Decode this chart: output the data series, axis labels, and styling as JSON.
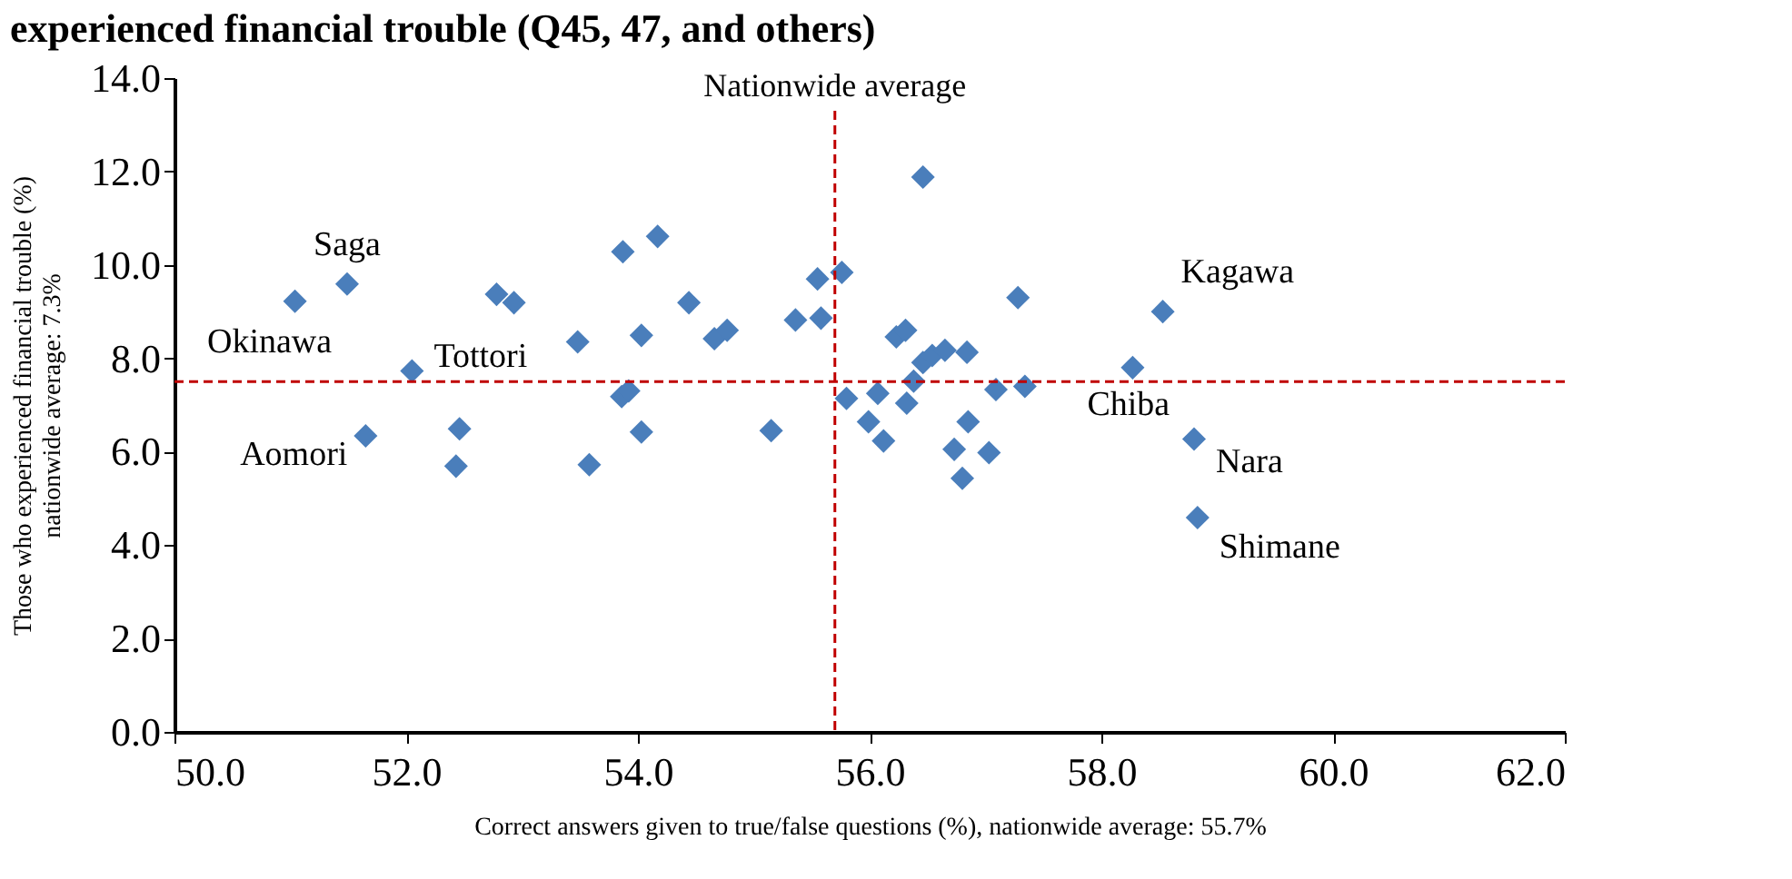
{
  "chart_data": {
    "type": "scatter",
    "title": "experienced financial trouble (Q45, 47, and others)",
    "xlabel": "Correct answers given to true/false questions (%), nationwide average: 55.7%",
    "ylabel": "Those who experienced financial trouble (%)\nnationwide average: 7.3%",
    "x": [
      51.04,
      51.49,
      52.05,
      51.65,
      52.46,
      52.43,
      52.78,
      52.93,
      53.48,
      53.58,
      53.86,
      53.92,
      54.03,
      54.03,
      53.87,
      54.17,
      54.44,
      54.66,
      54.77,
      55.15,
      55.36,
      55.55,
      55.76,
      55.58,
      55.8,
      56.46,
      56.07,
      55.99,
      56.12,
      56.32,
      56.23,
      56.31,
      56.38,
      56.46,
      56.54,
      56.65,
      56.84,
      56.85,
      56.73,
      56.8,
      57.03,
      57.09,
      57.34,
      57.28,
      58.27,
      58.53,
      58.8,
      58.83
    ],
    "values": [
      9.22,
      9.59,
      7.73,
      6.34,
      6.49,
      5.69,
      9.37,
      9.19,
      8.35,
      5.72,
      7.18,
      7.3,
      8.49,
      6.42,
      10.28,
      10.61,
      9.19,
      8.42,
      8.6,
      6.45,
      8.82,
      9.7,
      9.84,
      8.86,
      7.14,
      11.88,
      7.25,
      6.64,
      6.23,
      7.04,
      8.46,
      8.6,
      7.51,
      7.91,
      8.06,
      8.17,
      8.13,
      6.64,
      6.05,
      5.43,
      5.98,
      7.33,
      7.4,
      9.3,
      7.8,
      9.0,
      6.27,
      4.59
    ],
    "color": "#4a7ebb",
    "marker": "diamond",
    "xlim": [
      50,
      62
    ],
    "xticks": [
      {
        "value": 50,
        "label": "50.0"
      },
      {
        "value": 52,
        "label": "52.0"
      },
      {
        "value": 54,
        "label": "54.0"
      },
      {
        "value": 56,
        "label": "56.0"
      },
      {
        "value": 58,
        "label": "58.0"
      },
      {
        "value": 60,
        "label": "60.0"
      },
      {
        "value": 62,
        "label": "62.0"
      }
    ],
    "ylim": [
      0,
      14
    ],
    "yticks": [
      {
        "value": 0,
        "label": "0.0"
      },
      {
        "value": 2,
        "label": "2.0"
      },
      {
        "value": 4,
        "label": "4.0"
      },
      {
        "value": 6,
        "label": "6.0"
      },
      {
        "value": 8,
        "label": "8.0"
      },
      {
        "value": 10,
        "label": "10.0"
      },
      {
        "value": 12,
        "label": "12.0"
      },
      {
        "value": 14,
        "label": "14.0"
      }
    ],
    "ref_lines": [
      {
        "axis": "x",
        "value": 55.7,
        "label": "Nationwide average",
        "color": "#c00000",
        "line_style": "dashed"
      },
      {
        "axis": "y",
        "value": 7.5,
        "label": null,
        "color": "#c00000",
        "line_style": "dashed"
      }
    ],
    "annotations": [
      {
        "text": "Okinawa",
        "x": 51.04,
        "y": 9.22
      },
      {
        "text": "Saga",
        "x": 51.49,
        "y": 9.59
      },
      {
        "text": "Tottori",
        "x": 52.05,
        "y": 7.73
      },
      {
        "text": "Aomori",
        "x": 51.65,
        "y": 6.34
      },
      {
        "text": "Kagawa",
        "x": 58.53,
        "y": 9.0
      },
      {
        "text": "Chiba",
        "x": 58.27,
        "y": 7.8
      },
      {
        "text": "Nara",
        "x": 58.8,
        "y": 6.27
      },
      {
        "text": "Shimane",
        "x": 58.83,
        "y": 4.59
      }
    ],
    "grid": false
  }
}
